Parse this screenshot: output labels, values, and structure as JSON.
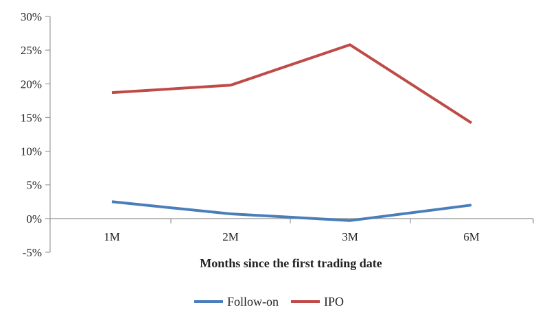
{
  "chart_data": {
    "type": "line",
    "categories": [
      "1M",
      "2M",
      "3M",
      "6M"
    ],
    "series": [
      {
        "name": "Follow-on",
        "values": [
          2.5,
          0.7,
          -0.3,
          2.0
        ],
        "color": "#4a7ebb"
      },
      {
        "name": "IPO",
        "values": [
          18.7,
          19.8,
          25.8,
          14.2
        ],
        "color": "#be4b48"
      }
    ],
    "y_ticks": [
      -5,
      0,
      5,
      10,
      15,
      20,
      25,
      30
    ],
    "y_tick_labels": [
      "-5%",
      "0%",
      "5%",
      "10%",
      "15%",
      "20%",
      "25%",
      "30%"
    ],
    "ylim": [
      -5,
      30
    ],
    "xlabel": "Months since the first trading date",
    "ylabel": "",
    "title": "",
    "grid": false,
    "legend_position": "bottom",
    "colors": {
      "axis": "#9a9a9a"
    }
  }
}
